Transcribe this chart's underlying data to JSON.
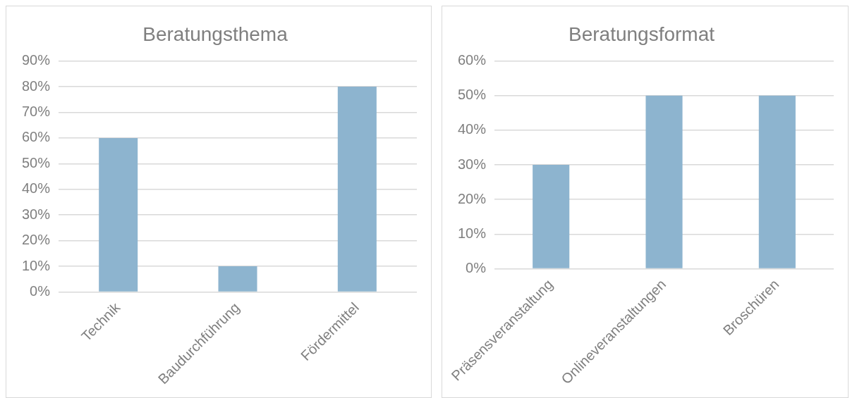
{
  "chart_data": [
    {
      "type": "bar",
      "title": "Beratungsthema",
      "categories": [
        "Technik",
        "Baudurchführung",
        "Fördermittel"
      ],
      "values": [
        60,
        10,
        80
      ],
      "color": "#8db4cf",
      "ylim": [
        0,
        90
      ],
      "yticks": [
        {
          "value": 0,
          "label": "0%"
        },
        {
          "value": 10,
          "label": "10%"
        },
        {
          "value": 20,
          "label": "20%"
        },
        {
          "value": 30,
          "label": "30%"
        },
        {
          "value": 40,
          "label": "40%"
        },
        {
          "value": 50,
          "label": "50%"
        },
        {
          "value": 60,
          "label": "60%"
        },
        {
          "value": 70,
          "label": "70%"
        },
        {
          "value": 80,
          "label": "80%"
        },
        {
          "value": 90,
          "label": "90%"
        }
      ],
      "grid": "y"
    },
    {
      "type": "bar",
      "title": "Beratungsformat",
      "categories": [
        "Präsensveranstaltung",
        "Onlineveranstaltungen",
        "Broschüren"
      ],
      "values": [
        30,
        50,
        50
      ],
      "color": "#8db4cf",
      "ylim": [
        0,
        60
      ],
      "yticks": [
        {
          "value": 0,
          "label": "0%"
        },
        {
          "value": 10,
          "label": "10%"
        },
        {
          "value": 20,
          "label": "20%"
        },
        {
          "value": 30,
          "label": "30%"
        },
        {
          "value": 40,
          "label": "40%"
        },
        {
          "value": 50,
          "label": "50%"
        },
        {
          "value": 60,
          "label": "60%"
        }
      ],
      "grid": "y"
    }
  ]
}
